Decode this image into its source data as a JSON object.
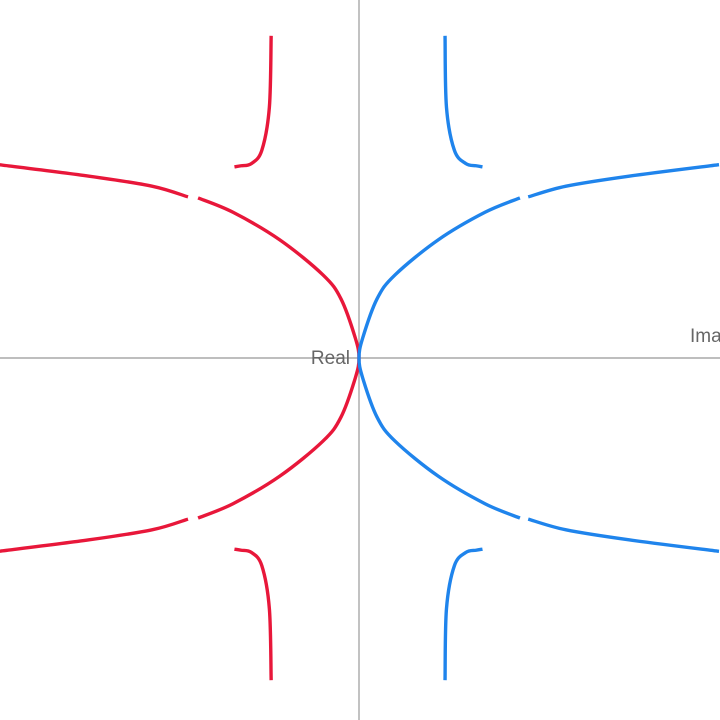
{
  "chart_data": {
    "type": "line",
    "title": "",
    "xlabel": "Imag",
    "ylabel": "Real",
    "xlim": [
      -1,
      1
    ],
    "ylim": [
      -1,
      1
    ],
    "grid": false,
    "legend": "none",
    "series": [
      {
        "color": "#e8173a",
        "segments": [
          {
            "points": [
              [
                -0.244,
                0.9
              ],
              [
                -0.249,
                0.7
              ],
              [
                -0.27,
                0.58
              ],
              [
                -0.299,
                0.543
              ],
              [
                -0.327,
                0.537
              ],
              [
                -0.346,
                0.534
              ]
            ]
          },
          {
            "points": [
              [
                -1.0,
                0.54
              ],
              [
                -0.75,
                0.508
              ],
              [
                -0.575,
                0.48
              ],
              [
                -0.475,
                0.45
              ]
            ]
          },
          {
            "points": [
              [
                -0.447,
                0.447
              ],
              [
                -0.35,
                0.407
              ],
              [
                -0.22,
                0.33
              ],
              [
                -0.1,
                0.232
              ],
              [
                -0.05,
                0.165
              ],
              [
                -0.01,
                0.055
              ],
              [
                0.0,
                0.0
              ],
              [
                -0.01,
                -0.055
              ],
              [
                -0.05,
                -0.165
              ],
              [
                -0.1,
                -0.232
              ],
              [
                -0.22,
                -0.33
              ],
              [
                -0.35,
                -0.407
              ],
              [
                -0.447,
                -0.447
              ]
            ]
          },
          {
            "points": [
              [
                -1.0,
                -0.54
              ],
              [
                -0.75,
                -0.508
              ],
              [
                -0.575,
                -0.48
              ],
              [
                -0.475,
                -0.45
              ]
            ]
          },
          {
            "points": [
              [
                -0.244,
                -0.9
              ],
              [
                -0.249,
                -0.7
              ],
              [
                -0.27,
                -0.58
              ],
              [
                -0.299,
                -0.543
              ],
              [
                -0.327,
                -0.537
              ],
              [
                -0.346,
                -0.534
              ]
            ]
          }
        ]
      },
      {
        "color": "#1f84ec",
        "segments": [
          {
            "points": [
              [
                0.239,
                0.9
              ],
              [
                0.243,
                0.7
              ],
              [
                0.265,
                0.58
              ],
              [
                0.297,
                0.543
              ],
              [
                0.325,
                0.537
              ],
              [
                0.343,
                0.534
              ]
            ]
          },
          {
            "points": [
              [
                1.0,
                0.54
              ],
              [
                0.75,
                0.508
              ],
              [
                0.575,
                0.48
              ],
              [
                0.47,
                0.45
              ]
            ]
          },
          {
            "points": [
              [
                0.447,
                0.447
              ],
              [
                0.35,
                0.407
              ],
              [
                0.22,
                0.33
              ],
              [
                0.1,
                0.232
              ],
              [
                0.05,
                0.165
              ],
              [
                0.01,
                0.055
              ],
              [
                0.0,
                0.0
              ],
              [
                0.01,
                -0.055
              ],
              [
                0.05,
                -0.165
              ],
              [
                0.1,
                -0.232
              ],
              [
                0.22,
                -0.33
              ],
              [
                0.35,
                -0.407
              ],
              [
                0.447,
                -0.447
              ]
            ]
          },
          {
            "points": [
              [
                1.0,
                -0.54
              ],
              [
                0.75,
                -0.508
              ],
              [
                0.575,
                -0.48
              ],
              [
                0.47,
                -0.45
              ]
            ]
          },
          {
            "points": [
              [
                0.239,
                -0.9
              ],
              [
                0.243,
                -0.7
              ],
              [
                0.265,
                -0.58
              ],
              [
                0.297,
                -0.543
              ],
              [
                0.325,
                -0.537
              ],
              [
                0.343,
                -0.534
              ]
            ]
          }
        ]
      }
    ]
  }
}
